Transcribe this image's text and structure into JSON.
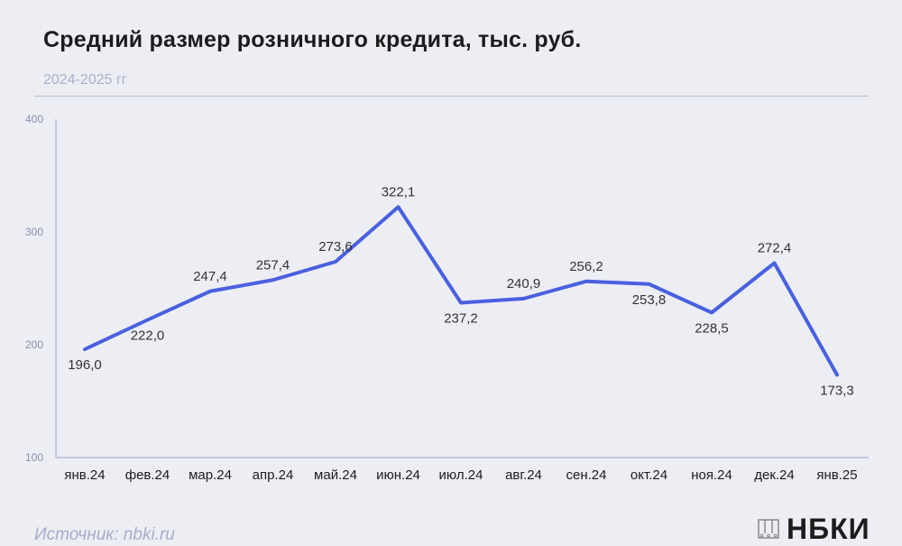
{
  "header": {
    "title": "Средний размер розничного кредита, тыс. руб.",
    "subtitle": "2024-2025 гг"
  },
  "footer": {
    "source": "Источник: nbki.ru",
    "brand": "НБКИ"
  },
  "colors": {
    "line": "#4a60e0",
    "axis": "#aab0cc",
    "label": "#333333"
  },
  "chart_data": {
    "type": "line",
    "title": "Средний размер розничного кредита, тыс. руб.",
    "subtitle": "2024-2025 гг",
    "categories": [
      "янв.24",
      "фев.24",
      "мар.24",
      "апр.24",
      "май.24",
      "июн.24",
      "июл.24",
      "авг.24",
      "сен.24",
      "окт.24",
      "ноя.24",
      "дек.24",
      "янв.25"
    ],
    "series": [
      {
        "values": [
          196.0,
          222.0,
          247.4,
          257.4,
          273.6,
          322.1,
          237.2,
          240.9,
          256.2,
          253.8,
          228.5,
          272.4,
          173.3
        ],
        "labels": [
          "196,0",
          "222,0",
          "247,4",
          "257,4",
          "273,6",
          "322,1",
          "237,2",
          "240,9",
          "256,2",
          "253,8",
          "228,5",
          "272,4",
          "173,3"
        ]
      }
    ],
    "yticks": [
      "100",
      "200",
      "300",
      "400"
    ],
    "ylim": [
      100,
      400
    ],
    "grid": false,
    "legend": "none"
  }
}
